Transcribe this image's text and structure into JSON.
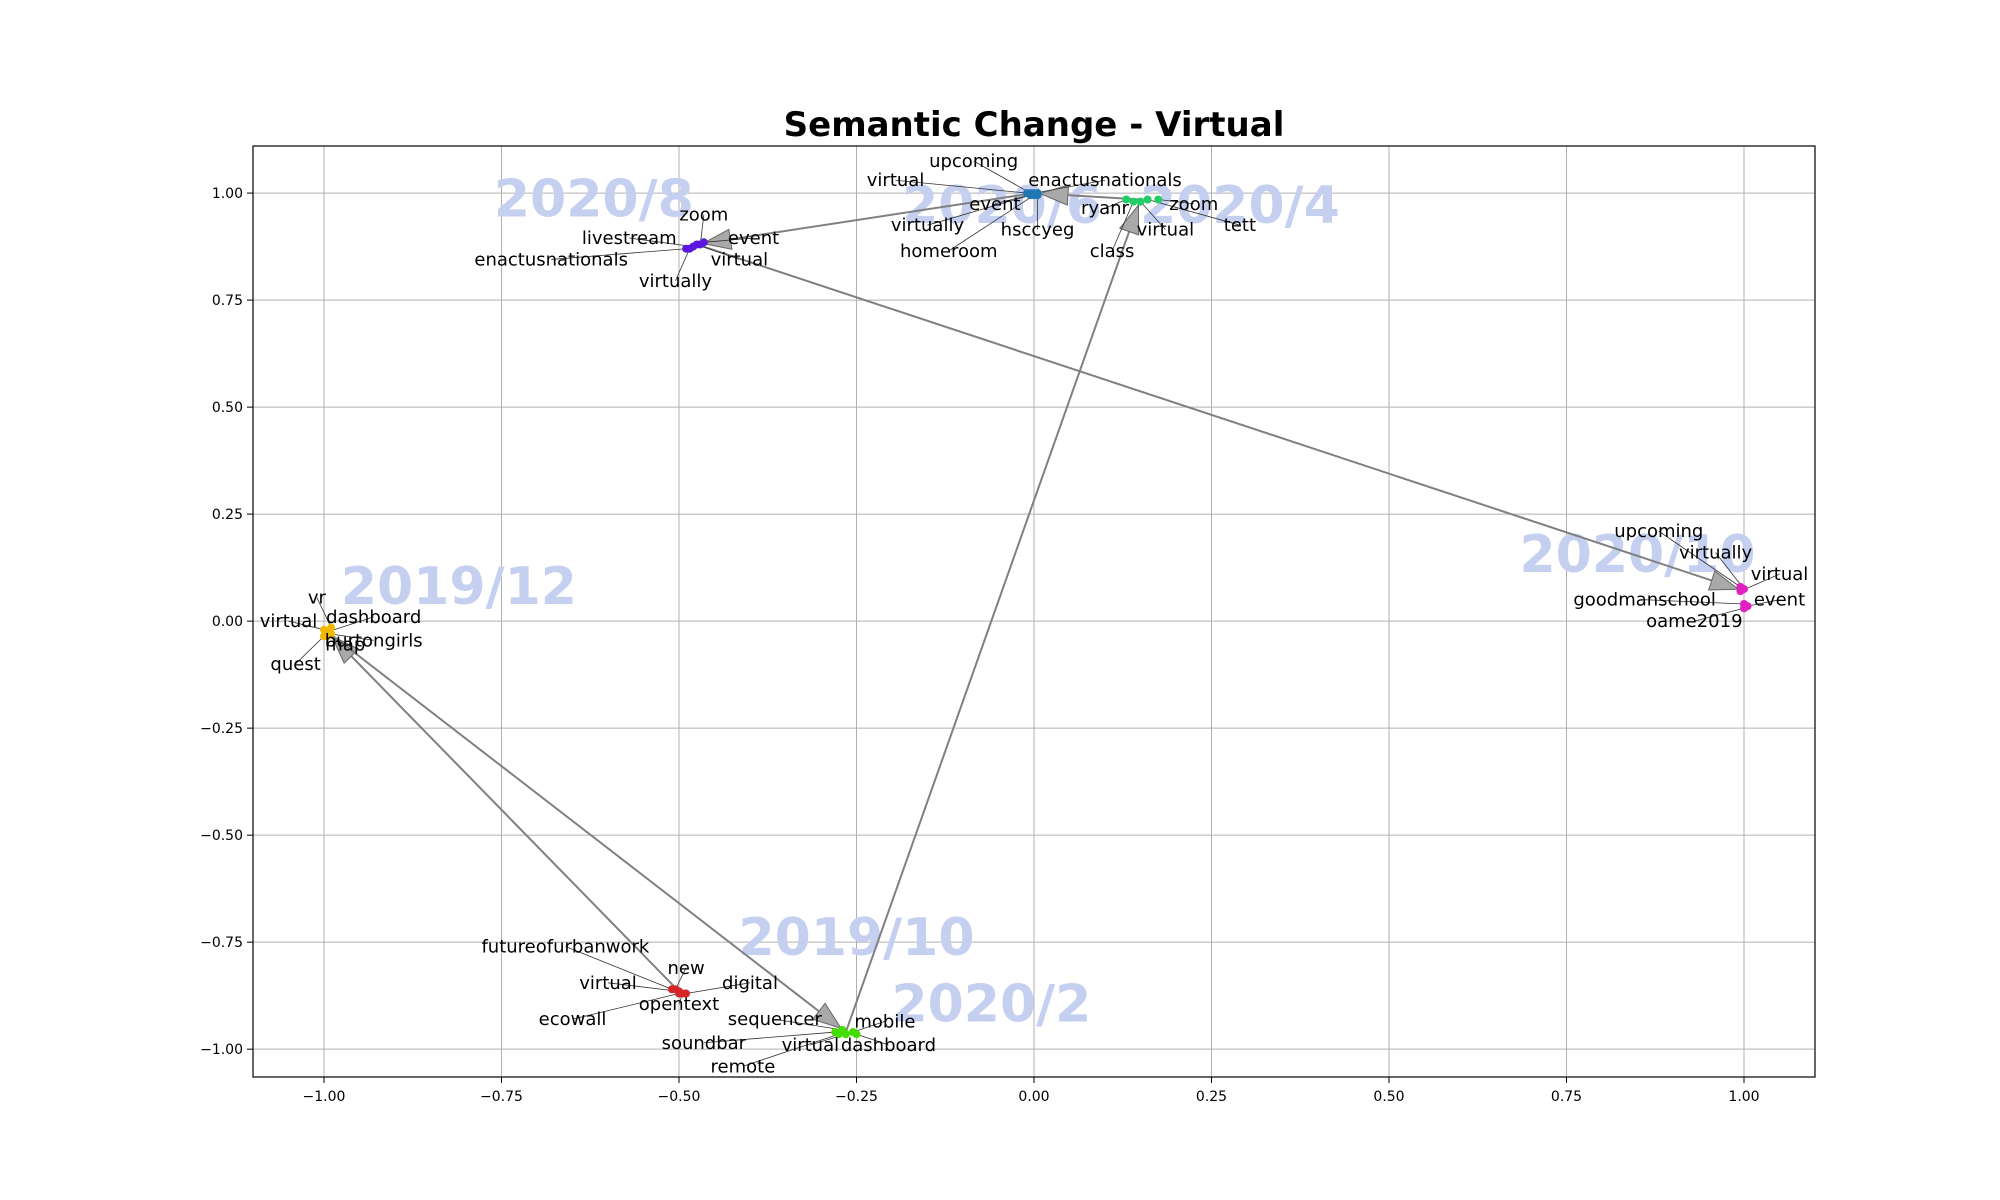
{
  "chart_data": {
    "type": "scatter",
    "title": "Semantic Change - Virtual",
    "xlabel": "",
    "ylabel": "",
    "xlim": [
      -1.1,
      1.1
    ],
    "ylim": [
      -1.065,
      1.11
    ],
    "grid": true,
    "x_ticks": [
      {
        "value": -1.0,
        "label": "−1.00"
      },
      {
        "value": -0.75,
        "label": "−0.75"
      },
      {
        "value": -0.5,
        "label": "−0.50"
      },
      {
        "value": -0.25,
        "label": "−0.25"
      },
      {
        "value": 0.0,
        "label": "0.00"
      },
      {
        "value": 0.25,
        "label": "0.25"
      },
      {
        "value": 0.5,
        "label": "0.50"
      },
      {
        "value": 0.75,
        "label": "0.75"
      },
      {
        "value": 1.0,
        "label": "1.00"
      }
    ],
    "y_ticks": [
      {
        "value": -1.0,
        "label": "−1.00"
      },
      {
        "value": -0.75,
        "label": "−0.75"
      },
      {
        "value": -0.5,
        "label": "−0.50"
      },
      {
        "value": -0.25,
        "label": "−0.25"
      },
      {
        "value": 0.0,
        "label": "0.00"
      },
      {
        "value": 0.25,
        "label": "0.25"
      },
      {
        "value": 0.5,
        "label": "0.50"
      },
      {
        "value": 0.75,
        "label": "0.75"
      },
      {
        "value": 1.0,
        "label": "1.00"
      }
    ],
    "trajectory_color": "#808080",
    "period_label_color": "#c5d0f0",
    "periods": [
      {
        "name": "2019/10",
        "color": "#d62728",
        "label_pos": [
          -0.25,
          -0.78
        ],
        "points": [
          {
            "word": "futureofurbanwork",
            "x": -0.51,
            "y": -0.86,
            "lx": -0.66,
            "ly": -0.76
          },
          {
            "word": "new",
            "x": -0.505,
            "y": -0.86,
            "lx": -0.49,
            "ly": -0.81
          },
          {
            "word": "virtual",
            "x": -0.5,
            "y": -0.865,
            "lx": -0.6,
            "ly": -0.845
          },
          {
            "word": "digital",
            "x": -0.49,
            "y": -0.87,
            "lx": -0.4,
            "ly": -0.845
          },
          {
            "word": "opentext",
            "x": -0.495,
            "y": -0.87,
            "lx": -0.5,
            "ly": -0.895
          },
          {
            "word": "ecowall",
            "x": -0.5,
            "y": -0.87,
            "lx": -0.65,
            "ly": -0.93
          }
        ]
      },
      {
        "name": "2019/12",
        "color": "#f0b800",
        "label_pos": [
          -0.81,
          0.04
        ],
        "points": [
          {
            "word": "vr",
            "x": -0.99,
            "y": -0.015,
            "lx": -1.01,
            "ly": 0.055
          },
          {
            "word": "virtual",
            "x": -1.0,
            "y": -0.02,
            "lx": -1.05,
            "ly": 0.0
          },
          {
            "word": "dashboard",
            "x": -0.995,
            "y": -0.025,
            "lx": -0.93,
            "ly": 0.01
          },
          {
            "word": "burtongirls",
            "x": -0.99,
            "y": -0.03,
            "lx": -0.93,
            "ly": -0.045
          },
          {
            "word": "map",
            "x": -0.995,
            "y": -0.035,
            "lx": -0.97,
            "ly": -0.055
          },
          {
            "word": "quest",
            "x": -1.0,
            "y": -0.035,
            "lx": -1.04,
            "ly": -0.1
          }
        ]
      },
      {
        "name": "2020/2",
        "color": "#44dd00",
        "label_pos": [
          -0.06,
          -0.935
        ],
        "points": [
          {
            "word": "sequencer",
            "x": -0.27,
            "y": -0.955,
            "lx": -0.365,
            "ly": -0.93
          },
          {
            "word": "mobile",
            "x": -0.255,
            "y": -0.96,
            "lx": -0.21,
            "ly": -0.935
          },
          {
            "word": "soundbar",
            "x": -0.28,
            "y": -0.96,
            "lx": -0.465,
            "ly": -0.985
          },
          {
            "word": "virtual",
            "x": -0.265,
            "y": -0.965,
            "lx": -0.315,
            "ly": -0.99
          },
          {
            "word": "dashboard",
            "x": -0.25,
            "y": -0.965,
            "lx": -0.205,
            "ly": -0.99
          },
          {
            "word": "remote",
            "x": -0.275,
            "y": -0.965,
            "lx": -0.41,
            "ly": -1.04
          }
        ]
      },
      {
        "name": "2020/4",
        "color": "#22cc66",
        "label_pos": [
          0.29,
          0.93
        ],
        "points": [
          {
            "word": "ryanr",
            "x": 0.13,
            "y": 0.985,
            "lx": 0.1,
            "ly": 0.965
          },
          {
            "word": "zoom",
            "x": 0.175,
            "y": 0.985,
            "lx": 0.225,
            "ly": 0.975
          },
          {
            "word": "virtual",
            "x": 0.15,
            "y": 0.98,
            "lx": 0.185,
            "ly": 0.915
          },
          {
            "word": "tett",
            "x": 0.16,
            "y": 0.985,
            "lx": 0.29,
            "ly": 0.925
          },
          {
            "word": "class",
            "x": 0.14,
            "y": 0.98,
            "lx": 0.11,
            "ly": 0.865
          }
        ]
      },
      {
        "name": "2020/6",
        "color": "#1f77b4",
        "label_pos": [
          -0.045,
          0.93
        ],
        "points": [
          {
            "word": "upcoming",
            "x": -0.005,
            "y": 1.0,
            "lx": -0.085,
            "ly": 1.075
          },
          {
            "word": "virtual",
            "x": -0.01,
            "y": 1.0,
            "lx": -0.195,
            "ly": 1.03
          },
          {
            "word": "enactusnationals",
            "x": 0.0,
            "y": 1.0,
            "lx": 0.1,
            "ly": 1.03
          },
          {
            "word": "event",
            "x": 0.005,
            "y": 1.0,
            "lx": -0.055,
            "ly": 0.975
          },
          {
            "word": "virtually",
            "x": -0.005,
            "y": 0.995,
            "lx": -0.15,
            "ly": 0.925
          },
          {
            "word": "hsccyeg",
            "x": 0.005,
            "y": 0.995,
            "lx": 0.005,
            "ly": 0.915
          },
          {
            "word": "homeroom",
            "x": 0.0,
            "y": 0.995,
            "lx": -0.12,
            "ly": 0.865
          }
        ]
      },
      {
        "name": "2020/8",
        "color": "#5b17e0",
        "label_pos": [
          -0.62,
          0.945
        ],
        "points": [
          {
            "word": "zoom",
            "x": -0.47,
            "y": 0.88,
            "lx": -0.465,
            "ly": 0.95
          },
          {
            "word": "livestream",
            "x": -0.48,
            "y": 0.875,
            "lx": -0.57,
            "ly": 0.895
          },
          {
            "word": "event",
            "x": -0.465,
            "y": 0.885,
            "lx": -0.395,
            "ly": 0.895
          },
          {
            "word": "enactusnationals",
            "x": -0.49,
            "y": 0.87,
            "lx": -0.68,
            "ly": 0.845
          },
          {
            "word": "virtual",
            "x": -0.475,
            "y": 0.88,
            "lx": -0.415,
            "ly": 0.845
          },
          {
            "word": "virtually",
            "x": -0.485,
            "y": 0.87,
            "lx": -0.505,
            "ly": 0.795
          }
        ]
      },
      {
        "name": "2020/10",
        "color": "#e020c0",
        "label_pos": [
          0.85,
          0.115
        ],
        "points": [
          {
            "word": "upcoming",
            "x": 0.995,
            "y": 0.08,
            "lx": 0.88,
            "ly": 0.21
          },
          {
            "word": "virtually",
            "x": 1.0,
            "y": 0.075,
            "lx": 0.96,
            "ly": 0.16
          },
          {
            "word": "virtual",
            "x": 0.995,
            "y": 0.07,
            "lx": 1.05,
            "ly": 0.11
          },
          {
            "word": "goodmanschool",
            "x": 1.0,
            "y": 0.04,
            "lx": 0.86,
            "ly": 0.05
          },
          {
            "word": "event",
            "x": 1.005,
            "y": 0.035,
            "lx": 1.05,
            "ly": 0.05
          },
          {
            "word": "oame2019",
            "x": 1.0,
            "y": 0.03,
            "lx": 0.93,
            "ly": 0.0
          }
        ]
      }
    ],
    "trajectory": [
      {
        "from": "2019/10",
        "x": -0.5,
        "y": -0.865
      },
      {
        "from": "2019/12",
        "x": -0.995,
        "y": -0.025
      },
      {
        "from": "2020/2",
        "x": -0.265,
        "y": -0.96
      },
      {
        "from": "2020/4",
        "x": 0.15,
        "y": 0.985
      },
      {
        "from": "2020/6",
        "x": 0.0,
        "y": 1.0
      },
      {
        "from": "2020/8",
        "x": -0.475,
        "y": 0.88
      },
      {
        "from": "2020/10",
        "x": 1.0,
        "y": 0.07
      }
    ]
  }
}
